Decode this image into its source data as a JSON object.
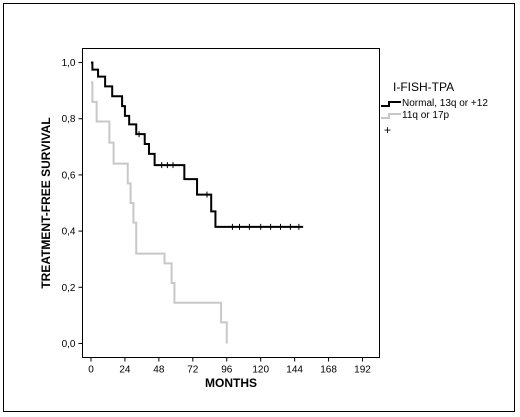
{
  "chart_data": {
    "type": "line",
    "subtype": "kaplan-meier",
    "xlabel": "MONTHS",
    "ylabel": "TREATMENT-FREE SURVIVAL",
    "xlim": [
      -6,
      204
    ],
    "ylim": [
      -0.05,
      1.05
    ],
    "xticks": [
      0,
      24,
      48,
      72,
      96,
      120,
      144,
      168,
      192
    ],
    "yticks": [
      0.0,
      0.2,
      0.4,
      0.6,
      0.8,
      1.0
    ],
    "ytick_labels": [
      "0,0",
      "0,2",
      "0,4",
      "0,6",
      "0,8",
      "1,0"
    ],
    "grid": false,
    "legend": {
      "title": "I-FISH-TPA",
      "placement": "right-outside",
      "entries": [
        "Normal, 13q or +12",
        "11q or 17p"
      ],
      "censor_marker": "+"
    },
    "series": [
      {
        "name": "Normal, 13q or +12",
        "color": "#000000",
        "steps": [
          [
            0,
            1.0
          ],
          [
            1,
            0.975
          ],
          [
            5,
            0.95
          ],
          [
            10,
            0.915
          ],
          [
            15,
            0.88
          ],
          [
            22,
            0.845
          ],
          [
            24,
            0.81
          ],
          [
            27,
            0.78
          ],
          [
            32,
            0.745
          ],
          [
            38,
            0.71
          ],
          [
            41,
            0.675
          ],
          [
            45,
            0.635
          ],
          [
            66,
            0.585
          ],
          [
            75,
            0.53
          ],
          [
            85,
            0.47
          ],
          [
            88,
            0.415
          ],
          [
            150,
            0.415
          ]
        ],
        "censored": [
          [
            34,
            0.745
          ],
          [
            50,
            0.635
          ],
          [
            54,
            0.635
          ],
          [
            58,
            0.635
          ],
          [
            82,
            0.53
          ],
          [
            100,
            0.415
          ],
          [
            105,
            0.415
          ],
          [
            112,
            0.415
          ],
          [
            120,
            0.415
          ],
          [
            127,
            0.415
          ],
          [
            134,
            0.415
          ],
          [
            141,
            0.415
          ],
          [
            147,
            0.415
          ]
        ]
      },
      {
        "name": "11q or 17p",
        "color": "#c8c8c8",
        "steps": [
          [
            0,
            0.93
          ],
          [
            1,
            0.86
          ],
          [
            4,
            0.79
          ],
          [
            13,
            0.715
          ],
          [
            16,
            0.64
          ],
          [
            26,
            0.57
          ],
          [
            28,
            0.5
          ],
          [
            30,
            0.43
          ],
          [
            32,
            0.32
          ],
          [
            52,
            0.285
          ],
          [
            57,
            0.215
          ],
          [
            59,
            0.145
          ],
          [
            92,
            0.075
          ],
          [
            96,
            0.0
          ]
        ],
        "censored": []
      }
    ]
  }
}
